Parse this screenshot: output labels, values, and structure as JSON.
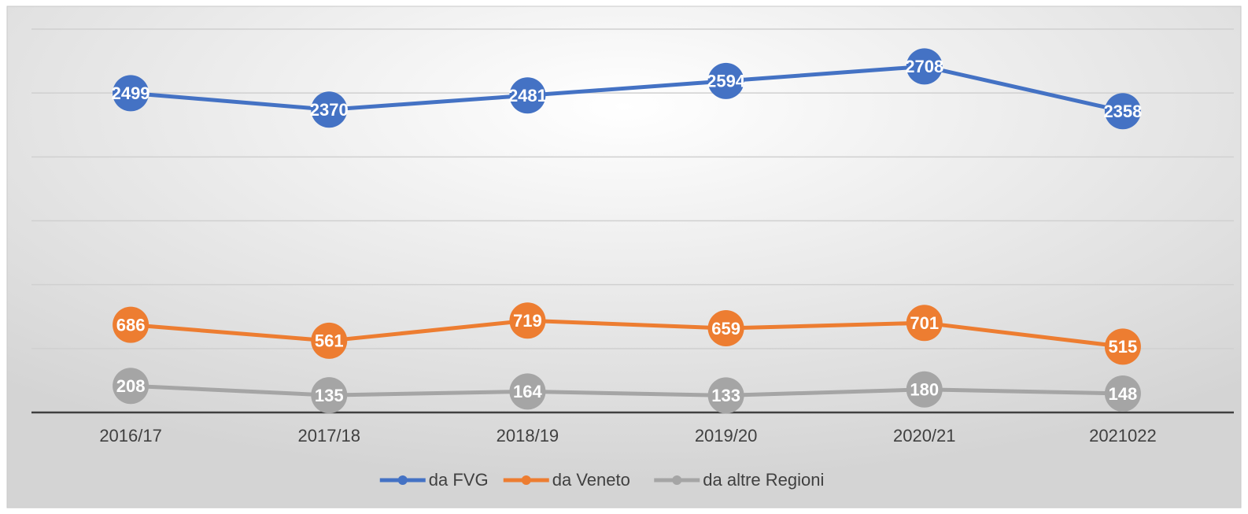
{
  "chart_data": {
    "type": "line",
    "categories": [
      "2016/17",
      "2017/18",
      "2018/19",
      "2019/20",
      "2020/21",
      "2021022"
    ],
    "series": [
      {
        "name": "da FVG",
        "color": "#4472c4",
        "values": [
          2499,
          2370,
          2481,
          2594,
          2708,
          2358
        ]
      },
      {
        "name": "da Veneto",
        "color": "#ed7d31",
        "values": [
          686,
          561,
          719,
          659,
          701,
          515
        ]
      },
      {
        "name": "da altre Regioni",
        "color": "#a5a5a5",
        "values": [
          208,
          135,
          164,
          133,
          180,
          148
        ]
      }
    ],
    "ylim": [
      0,
      3000
    ],
    "yticks": [
      0,
      500,
      1000,
      1500,
      2000,
      2500,
      3000
    ],
    "grid": true,
    "legend": "bottom"
  }
}
